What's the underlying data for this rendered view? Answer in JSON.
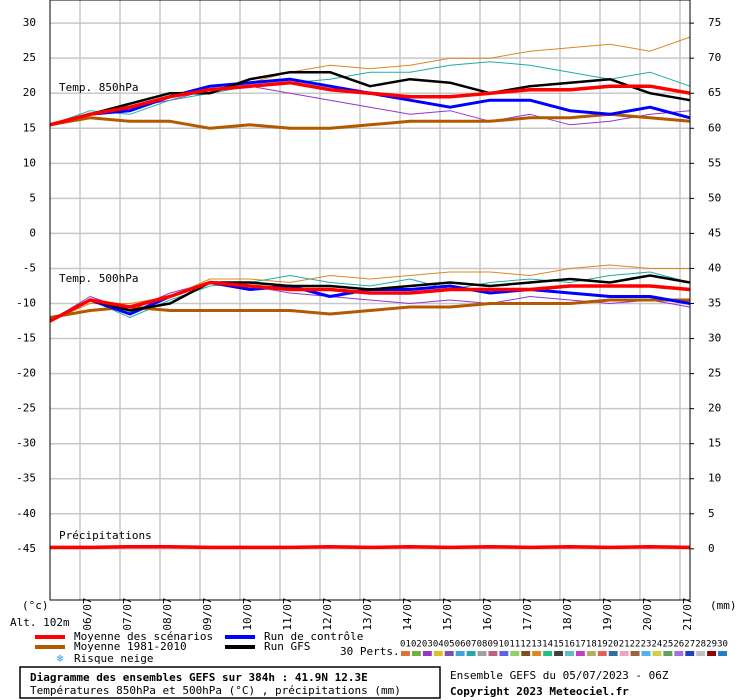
{
  "chart_data": {
    "type": "line",
    "title": "Diagramme des ensembles GEFS sur 384h : 41.9N 12.3E",
    "subtitle": "Températures 850hPa et 500hPa (°C) , précipitations (mm)",
    "run_label": "Ensemble GEFS du 05/07/2023 - 06Z",
    "copyright": "Copyright 2023 Meteociel.fr",
    "y_unit": "(°c)",
    "altitude": "Alt. 102m",
    "y2_unit": "(mm)",
    "x": [
      0,
      24,
      48,
      72,
      96,
      120,
      144,
      168,
      192,
      216,
      240,
      264,
      288,
      312,
      336,
      360,
      384
    ],
    "xlim": [
      0,
      384
    ],
    "xticks": [
      {
        "value": 18,
        "label": "06/07"
      },
      {
        "value": 42,
        "label": "07/07"
      },
      {
        "value": 66,
        "label": "08/07"
      },
      {
        "value": 90,
        "label": "09/07"
      },
      {
        "value": 114,
        "label": "10/07"
      },
      {
        "value": 138,
        "label": "11/07"
      },
      {
        "value": 162,
        "label": "12/07"
      },
      {
        "value": 186,
        "label": "13/07"
      },
      {
        "value": 210,
        "label": "14/07"
      },
      {
        "value": 234,
        "label": "15/07"
      },
      {
        "value": 258,
        "label": "16/07"
      },
      {
        "value": 282,
        "label": "17/07"
      },
      {
        "value": 306,
        "label": "18/07"
      },
      {
        "value": 330,
        "label": "19/07"
      },
      {
        "value": 354,
        "label": "20/07"
      },
      {
        "value": 378,
        "label": "21/07"
      }
    ],
    "ylim": [
      -52.3,
      33.3
    ],
    "yticks": [
      30,
      25,
      20,
      15,
      10,
      5,
      0,
      -5,
      -10,
      -15,
      -20,
      -25,
      -30,
      -35,
      -40,
      -45
    ],
    "y2lim": [
      -7.3,
      78.3
    ],
    "y2ticks": [
      75,
      70,
      65,
      60,
      55,
      50,
      45,
      40,
      35,
      30,
      25,
      20,
      15,
      10,
      5,
      0
    ],
    "grid": true,
    "panels": [
      {
        "label": "Temp. 850hPa",
        "series": [
          {
            "name": "03",
            "color": "#9933cc",
            "width": 1,
            "values": [
              15.5,
              17,
              18,
              19,
              20.5,
              21,
              20,
              19,
              18,
              17,
              17.5,
              16,
              17,
              15.5,
              16,
              17,
              17.5
            ]
          },
          {
            "name": "13",
            "color": "#dd8822",
            "width": 1,
            "values": [
              15.5,
              17,
              18.5,
              20,
              20.5,
              21.5,
              23,
              24,
              23.5,
              24,
              25,
              25,
              26,
              26.5,
              27,
              26,
              28
            ]
          },
          {
            "name": "07",
            "color": "#22aaaa",
            "width": 1,
            "values": [
              15.5,
              17.5,
              17,
              19,
              20,
              21,
              21.5,
              22,
              23,
              23,
              24,
              24.5,
              24,
              23,
              22,
              23,
              21
            ]
          },
          {
            "name": "Moyenne 1981-2010",
            "color": "#b35900",
            "width": 3,
            "values": [
              15.5,
              16.5,
              16,
              16,
              15,
              15.5,
              15,
              15,
              15.5,
              16,
              16,
              16,
              16.5,
              16.5,
              17,
              16.5,
              16
            ]
          },
          {
            "name": "Run de contrôle",
            "color": "#0000ff",
            "width": 3,
            "values": [
              15.5,
              17,
              17.5,
              19.5,
              21,
              21.5,
              22,
              21,
              20,
              19,
              18,
              19,
              19,
              17.5,
              17,
              18,
              16.5
            ]
          },
          {
            "name": "Run GFS",
            "color": "#000000",
            "width": 2.5,
            "values": [
              15.5,
              17,
              18.5,
              20,
              20,
              22,
              23,
              23,
              21,
              22,
              21.5,
              20,
              21,
              21.5,
              22,
              20,
              19
            ]
          },
          {
            "name": "Moyenne des scénarios",
            "color": "#ff0000",
            "width": 3.5,
            "values": [
              15.5,
              17,
              18,
              19.5,
              20.5,
              21,
              21.5,
              20.5,
              20,
              19.5,
              19.5,
              20,
              20.5,
              20.5,
              21,
              21,
              20
            ]
          }
        ]
      },
      {
        "label": "Temp. 500hPa",
        "series": [
          {
            "name": "03",
            "color": "#9933cc",
            "width": 1,
            "values": [
              -12.5,
              -9,
              -11,
              -8.5,
              -7,
              -7.5,
              -8.5,
              -9,
              -9.5,
              -10,
              -9.5,
              -10,
              -9,
              -9.5,
              -10,
              -9.5,
              -10.5
            ]
          },
          {
            "name": "13",
            "color": "#dd8822",
            "width": 1,
            "values": [
              -12.5,
              -10,
              -10,
              -9,
              -6.5,
              -6.5,
              -7,
              -6,
              -6.5,
              -6,
              -5.5,
              -5.5,
              -6,
              -5,
              -4.5,
              -5,
              -5
            ]
          },
          {
            "name": "07",
            "color": "#22aaaa",
            "width": 1,
            "values": [
              -12.5,
              -9.5,
              -12,
              -9.5,
              -7.5,
              -7,
              -6,
              -7,
              -7.5,
              -6.5,
              -8,
              -7,
              -6.5,
              -7,
              -6,
              -5.5,
              -7
            ]
          },
          {
            "name": "Moyenne 1981-2010",
            "color": "#b35900",
            "width": 3,
            "values": [
              -12,
              -11,
              -10.5,
              -11,
              -11,
              -11,
              -11,
              -11.5,
              -11,
              -10.5,
              -10.5,
              -10,
              -10,
              -10,
              -9.5,
              -9.5,
              -9.5
            ]
          },
          {
            "name": "Run de contrôle",
            "color": "#0000ff",
            "width": 3,
            "values": [
              -12.5,
              -9.5,
              -11.5,
              -9,
              -7,
              -8,
              -7.5,
              -9,
              -8,
              -8,
              -7.5,
              -8.5,
              -8,
              -8.5,
              -9,
              -9,
              -10
            ]
          },
          {
            "name": "Run GFS",
            "color": "#000000",
            "width": 2.5,
            "values": [
              -12.5,
              -9.5,
              -11,
              -10,
              -7,
              -7,
              -7.5,
              -7.5,
              -8,
              -7.5,
              -7,
              -7.5,
              -7,
              -6.5,
              -7,
              -6,
              -7
            ]
          },
          {
            "name": "Moyenne des scénarios",
            "color": "#ff0000",
            "width": 3.5,
            "values": [
              -12.5,
              -9.5,
              -10.5,
              -9,
              -7,
              -7.5,
              -8,
              -8,
              -8.5,
              -8.5,
              -8,
              -8,
              -8,
              -7.5,
              -7.5,
              -7.5,
              -8
            ]
          }
        ]
      },
      {
        "label": "Précipitations",
        "series": [
          {
            "name": "Moyenne des scénarios",
            "color": "#ff0000",
            "width": 3.5,
            "axis": "y2",
            "values": [
              0.2,
              0.2,
              0.3,
              0.3,
              0.2,
              0.2,
              0.2,
              0.3,
              0.2,
              0.3,
              0.2,
              0.3,
              0.2,
              0.3,
              0.2,
              0.3,
              0.2
            ]
          }
        ]
      }
    ],
    "legend": [
      {
        "name": "Moyenne des scénarios",
        "color": "#ff0000"
      },
      {
        "name": "Moyenne 1981-2010",
        "color": "#b35900"
      },
      {
        "name": "Risque neige",
        "color": "#3399ff"
      },
      {
        "name": "Run de contrôle",
        "color": "#0000ff"
      },
      {
        "name": "Run GFS",
        "color": "#000000"
      }
    ],
    "perturbations": {
      "label": "30 Perts.",
      "members": [
        {
          "name": "01",
          "color": "#e07030"
        },
        {
          "name": "02",
          "color": "#70b040"
        },
        {
          "name": "03",
          "color": "#9933cc"
        },
        {
          "name": "04",
          "color": "#e0c020"
        },
        {
          "name": "05",
          "color": "#8050b0"
        },
        {
          "name": "06",
          "color": "#40a0e0"
        },
        {
          "name": "07",
          "color": "#22aaaa"
        },
        {
          "name": "08",
          "color": "#a0a0a0"
        },
        {
          "name": "09",
          "color": "#c06080"
        },
        {
          "name": "10",
          "color": "#6060e0"
        },
        {
          "name": "11",
          "color": "#90d060"
        },
        {
          "name": "12",
          "color": "#805020"
        },
        {
          "name": "13",
          "color": "#dd8822"
        },
        {
          "name": "14",
          "color": "#20c080"
        },
        {
          "name": "15",
          "color": "#404040"
        },
        {
          "name": "16",
          "color": "#60c0c0"
        },
        {
          "name": "17",
          "color": "#c040c0"
        },
        {
          "name": "18",
          "color": "#b0b060"
        },
        {
          "name": "19",
          "color": "#e06060"
        },
        {
          "name": "20",
          "color": "#3070a0"
        },
        {
          "name": "21",
          "color": "#f0a0c0"
        },
        {
          "name": "22",
          "color": "#a06040"
        },
        {
          "name": "23",
          "color": "#50b0f0"
        },
        {
          "name": "24",
          "color": "#d0d040"
        },
        {
          "name": "25",
          "color": "#60a060"
        },
        {
          "name": "26",
          "color": "#a070e0"
        },
        {
          "name": "27",
          "color": "#2040c0"
        },
        {
          "name": "28",
          "color": "#c0c0c0"
        },
        {
          "name": "29",
          "color": "#900000"
        },
        {
          "name": "30",
          "color": "#2080c0"
        }
      ]
    }
  }
}
